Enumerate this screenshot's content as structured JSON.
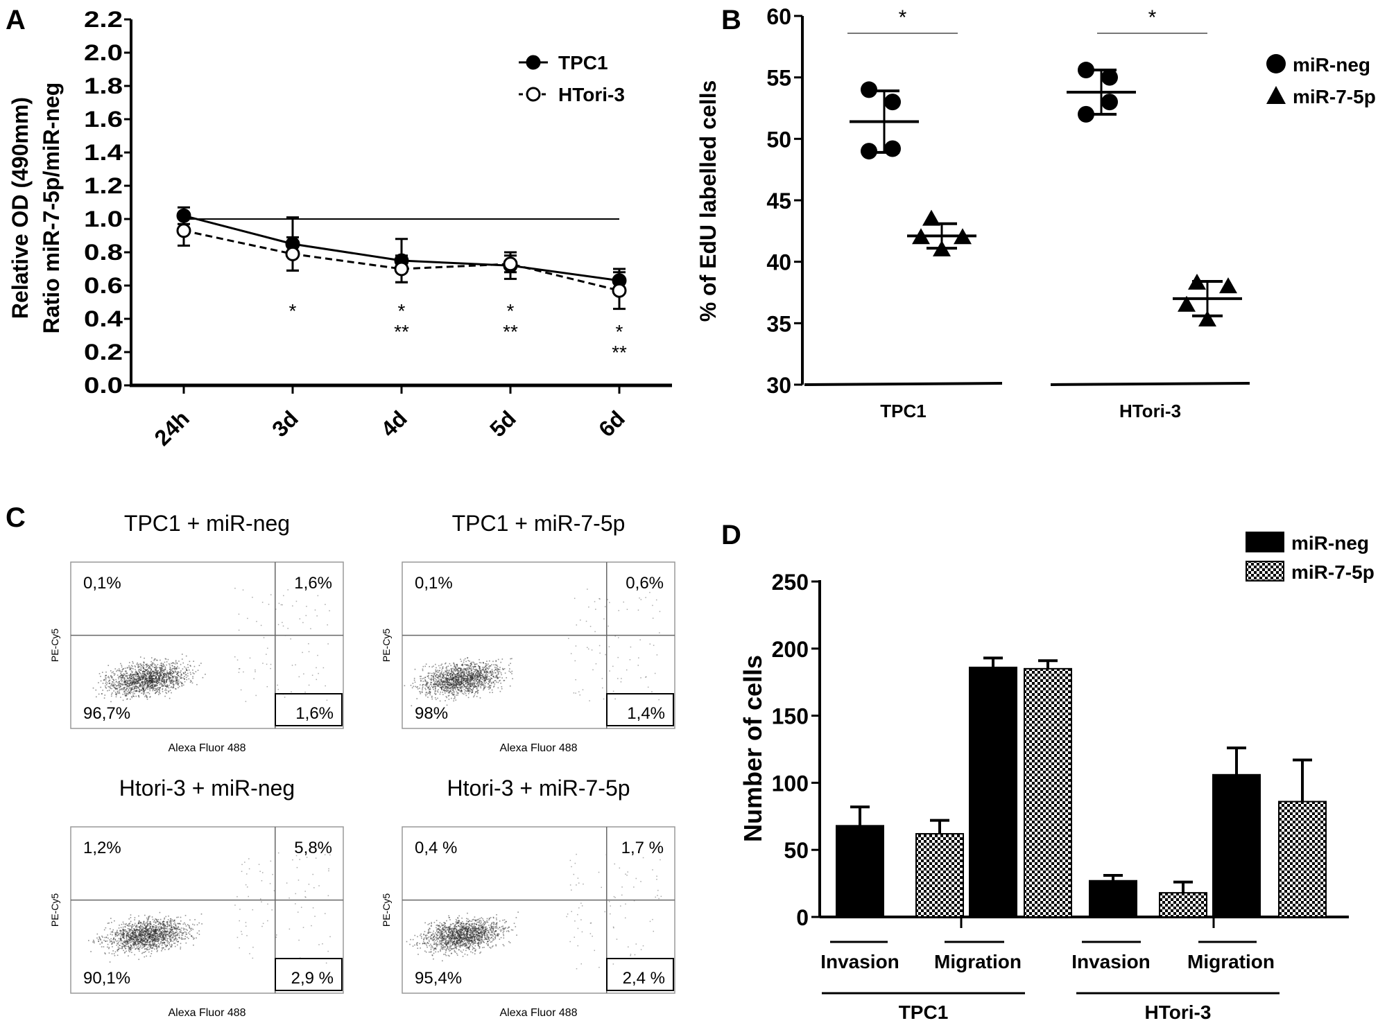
{
  "panel_letters": [
    "A",
    "B",
    "C",
    "D"
  ],
  "chart_data": [
    {
      "panel": "A",
      "type": "line",
      "ylabel_lines": [
        "Relative OD (490mm)",
        "Ratio miR-7-5p/miR-neg"
      ],
      "categories": [
        "24h",
        "3d",
        "4d",
        "5d",
        "6d"
      ],
      "ylim": [
        0,
        2.2
      ],
      "yticks": [
        "0.0",
        "0.2",
        "0.4",
        "0.6",
        "0.8",
        "1.0",
        "1.2",
        "1.4",
        "1.6",
        "1.8",
        "2.0",
        "2.2"
      ],
      "reference_line": 1.0,
      "legend_position": "top-right",
      "series": [
        {
          "name": "TPC1",
          "marker": "filled-circle",
          "line": "solid",
          "values": [
            1.02,
            0.85,
            0.75,
            0.72,
            0.63
          ],
          "errors": [
            0.05,
            0.16,
            0.13,
            0.08,
            0.07
          ]
        },
        {
          "name": "HTori-3",
          "marker": "open-circle",
          "line": "dashed",
          "values": [
            0.93,
            0.79,
            0.7,
            0.73,
            0.57
          ],
          "errors": [
            0.09,
            0.1,
            0.08,
            0.05,
            0.11
          ]
        }
      ],
      "annotations": [
        {
          "category": "3d",
          "lines": [
            "*"
          ]
        },
        {
          "category": "4d",
          "lines": [
            "*",
            "**"
          ]
        },
        {
          "category": "5d",
          "lines": [
            "*",
            "**"
          ]
        },
        {
          "category": "6d",
          "lines": [
            "*",
            "**"
          ]
        }
      ]
    },
    {
      "panel": "B",
      "type": "scatter",
      "ylabel": "% of EdU labelled cells",
      "ylim": [
        30,
        60
      ],
      "yticks": [
        "30",
        "35",
        "40",
        "45",
        "50",
        "55",
        "60"
      ],
      "groups": [
        "TPC1",
        "HTori-3"
      ],
      "legend_position": "top-right",
      "series": [
        {
          "name": "miR-neg",
          "marker": "circle",
          "points": [
            [
              54.0,
              53.0,
              49.2,
              49.0
            ],
            [
              55.6,
              55.0,
              53.0,
              52.0
            ]
          ],
          "mean": [
            51.4,
            53.8
          ],
          "sd": [
            2.5,
            1.8
          ]
        },
        {
          "name": "miR-7-5p",
          "marker": "triangle",
          "points": [
            [
              43.5,
              42.0,
              42.0,
              41.0
            ],
            [
              38.3,
              38.0,
              36.5,
              35.3
            ]
          ],
          "mean": [
            42.1,
            37.0
          ],
          "sd": [
            1.0,
            1.4
          ]
        }
      ],
      "significance": [
        "*",
        "*"
      ]
    },
    {
      "panel": "D",
      "type": "bar",
      "ylabel": "Number of cells",
      "ylim": [
        0,
        250
      ],
      "yticks": [
        "0",
        "50",
        "100",
        "150",
        "200",
        "250"
      ],
      "groups": [
        "TPC1",
        "HTori-3"
      ],
      "subgroups": [
        "Invasion",
        "Migration"
      ],
      "legend_position": "top-right",
      "series": [
        {
          "name": "miR-neg",
          "fill": "solid-black",
          "values": [
            68,
            186,
            27,
            106
          ],
          "errors": [
            14,
            7,
            4,
            20
          ]
        },
        {
          "name": "miR-7-5p",
          "fill": "checkered",
          "values": [
            62,
            185,
            18,
            86
          ],
          "errors": [
            10,
            6,
            8,
            31
          ]
        }
      ]
    }
  ],
  "flow_plots": {
    "xlabel": "Alexa Fluor 488",
    "ylabel": "PE-Cy5",
    "plots": [
      {
        "title": "TPC1 + miR-neg",
        "q_ul": "0,1%",
        "q_ur": "1,6%",
        "q_ll": "96,7%",
        "q_lr": "1,6%"
      },
      {
        "title": "TPC1 + miR-7-5p",
        "q_ul": "0,1%",
        "q_ur": "0,6%",
        "q_ll": "98%",
        "q_lr": "1,4%"
      },
      {
        "title": "Htori-3 + miR-neg",
        "q_ul": "1,2%",
        "q_ur": "5,8%",
        "q_ll": "90,1%",
        "q_lr": "2,9 %"
      },
      {
        "title": "Htori-3 + miR-7-5p",
        "q_ul": "0,4 %",
        "q_ur": "1,7 %",
        "q_ll": "95,4%",
        "q_lr": "2,4 %"
      }
    ]
  }
}
